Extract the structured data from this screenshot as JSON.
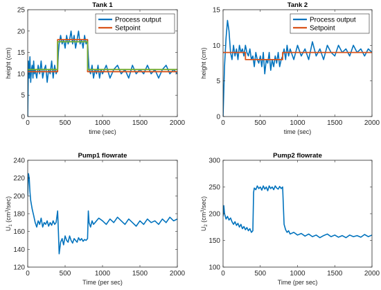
{
  "chart_data": [
    {
      "type": "line",
      "title": "Tank 1",
      "xlabel": "time (sec)",
      "ylabel": "height (cm)",
      "xlim": [
        0,
        2000
      ],
      "ylim": [
        0,
        25
      ],
      "xticks": [
        "0",
        "500",
        "1000",
        "1500",
        "2000"
      ],
      "yticks": [
        "0",
        "5",
        "10",
        "15",
        "20",
        "25"
      ],
      "legend_placement": "top-right",
      "series": [
        {
          "name": "Process output",
          "color": "#0072BD",
          "x": [
            0,
            10,
            20,
            30,
            40,
            50,
            60,
            70,
            80,
            90,
            100,
            120,
            140,
            160,
            180,
            200,
            220,
            240,
            260,
            280,
            300,
            320,
            340,
            360,
            380,
            400,
            410,
            420,
            440,
            460,
            480,
            500,
            520,
            540,
            560,
            580,
            600,
            620,
            640,
            660,
            680,
            700,
            720,
            740,
            760,
            780,
            800,
            810,
            820,
            840,
            860,
            880,
            900,
            920,
            940,
            960,
            980,
            1000,
            1050,
            1100,
            1150,
            1200,
            1250,
            1300,
            1350,
            1400,
            1450,
            1500,
            1550,
            1600,
            1650,
            1700,
            1750,
            1800,
            1850,
            1900,
            1950,
            2000
          ],
          "y": [
            0,
            13,
            9,
            14,
            8,
            11,
            12,
            9,
            13,
            10,
            11,
            9,
            12,
            10,
            13,
            9,
            11,
            12,
            8,
            11,
            10,
            13,
            9,
            12,
            10,
            11,
            15,
            17,
            19,
            17,
            18,
            16,
            19,
            17,
            18,
            20,
            17,
            19,
            16,
            18,
            20,
            17,
            18,
            16,
            19,
            17,
            18,
            14,
            11,
            10,
            12,
            9,
            11,
            10,
            12,
            9,
            11,
            10,
            12,
            9,
            11,
            12,
            10,
            11,
            9,
            12,
            10,
            11,
            10,
            12,
            10,
            11,
            9,
            11,
            12,
            10,
            11,
            10
          ]
        },
        {
          "name": "Setpoint",
          "color": "#D95319",
          "x": [
            0,
            400,
            400,
            800,
            800,
            2000
          ],
          "y": [
            10.5,
            10.5,
            18,
            18,
            10.5,
            10.5
          ]
        },
        {
          "color": "#77AC30",
          "x": [
            0,
            400,
            400,
            800,
            800,
            2000
          ],
          "y": [
            11,
            11,
            17.5,
            17.5,
            11,
            11
          ]
        }
      ]
    },
    {
      "type": "line",
      "title": "Tank 2",
      "xlabel": "time (sec)",
      "ylabel": "height (cm)",
      "xlim": [
        0,
        2000
      ],
      "ylim": [
        0,
        15
      ],
      "xticks": [
        "0",
        "500",
        "1000",
        "1500",
        "2000"
      ],
      "yticks": [
        "0",
        "5",
        "10",
        "15"
      ],
      "legend_placement": "top-right",
      "series": [
        {
          "name": "Process output",
          "color": "#0072BD",
          "x": [
            0,
            20,
            40,
            60,
            80,
            100,
            120,
            140,
            160,
            180,
            200,
            220,
            240,
            260,
            280,
            300,
            320,
            340,
            360,
            380,
            400,
            420,
            440,
            460,
            480,
            500,
            520,
            540,
            560,
            580,
            600,
            620,
            640,
            660,
            680,
            700,
            720,
            740,
            760,
            780,
            800,
            820,
            840,
            860,
            880,
            900,
            950,
            1000,
            1050,
            1100,
            1150,
            1200,
            1250,
            1300,
            1350,
            1400,
            1450,
            1500,
            1550,
            1600,
            1650,
            1700,
            1750,
            1800,
            1850,
            1900,
            1950,
            2000
          ],
          "y": [
            0,
            7,
            11,
            13.5,
            12,
            9,
            8,
            10,
            8.5,
            9.5,
            8,
            10,
            9,
            9.5,
            8.5,
            10,
            9,
            8.5,
            9.5,
            8,
            8.5,
            7,
            9,
            8,
            7.5,
            8.5,
            7,
            9,
            6,
            8,
            7.5,
            9,
            6.5,
            8,
            7,
            8.5,
            7.5,
            9,
            7,
            8,
            8.5,
            9.5,
            8,
            10,
            8.5,
            9.5,
            8,
            10,
            8.5,
            9.5,
            8,
            10.5,
            8.5,
            9.5,
            8,
            10,
            9,
            8.5,
            10,
            9,
            9.5,
            8.5,
            10,
            9,
            9.5,
            8.5,
            9.5,
            9
          ]
        },
        {
          "name": "Setpoint",
          "color": "#D95319",
          "x": [
            0,
            60,
            300,
            300,
            800,
            800,
            2000
          ],
          "y": [
            9,
            9,
            9,
            8,
            8,
            9,
            9
          ]
        }
      ]
    },
    {
      "type": "line",
      "title": "Pump1 flowrate",
      "xlabel": "Time (per sec)",
      "ylabel_main": "U",
      "ylabel_sub": "1",
      "ylabel_unit": " (cm",
      "ylabel_sup": "3",
      "ylabel_tail": "/sec)",
      "xlim": [
        0,
        2000
      ],
      "ylim": [
        120,
        240
      ],
      "xticks": [
        "0",
        "500",
        "1000",
        "1500",
        "2000"
      ],
      "yticks": [
        "120",
        "140",
        "160",
        "180",
        "200",
        "220",
        "240"
      ],
      "series": [
        {
          "color": "#0072BD",
          "x": [
            0,
            10,
            20,
            30,
            40,
            50,
            60,
            80,
            100,
            120,
            140,
            160,
            180,
            200,
            220,
            240,
            260,
            280,
            300,
            320,
            340,
            360,
            380,
            400,
            410,
            420,
            440,
            460,
            480,
            500,
            520,
            540,
            560,
            580,
            600,
            620,
            640,
            660,
            680,
            700,
            720,
            740,
            760,
            780,
            800,
            810,
            820,
            840,
            860,
            880,
            900,
            950,
            1000,
            1050,
            1100,
            1150,
            1200,
            1250,
            1300,
            1350,
            1400,
            1450,
            1500,
            1550,
            1600,
            1650,
            1700,
            1750,
            1800,
            1850,
            1900,
            1950,
            2000
          ],
          "y": [
            200,
            225,
            220,
            205,
            195,
            190,
            185,
            178,
            170,
            165,
            172,
            168,
            175,
            165,
            170,
            168,
            172,
            166,
            170,
            167,
            172,
            168,
            170,
            183,
            160,
            135,
            148,
            152,
            145,
            155,
            150,
            148,
            155,
            150,
            147,
            152,
            150,
            148,
            153,
            150,
            152,
            149,
            151,
            150,
            152,
            183,
            170,
            165,
            172,
            168,
            170,
            175,
            172,
            168,
            174,
            170,
            176,
            172,
            168,
            174,
            170,
            166,
            172,
            168,
            174,
            170,
            172,
            168,
            174,
            170,
            176,
            172,
            174
          ]
        }
      ]
    },
    {
      "type": "line",
      "title": "Pump2 flowrate",
      "xlabel": "Time (per sec)",
      "ylabel_main": "U",
      "ylabel_sub": "2",
      "ylabel_unit": " (cm",
      "ylabel_sup": "3",
      "ylabel_tail": "/sec)",
      "xlim": [
        0,
        2000
      ],
      "ylim": [
        100,
        300
      ],
      "xticks": [
        "0",
        "500",
        "1000",
        "1500",
        "2000"
      ],
      "yticks": [
        "100",
        "150",
        "200",
        "250",
        "300"
      ],
      "series": [
        {
          "color": "#0072BD",
          "x": [
            0,
            10,
            20,
            40,
            60,
            80,
            100,
            120,
            140,
            160,
            180,
            200,
            220,
            240,
            260,
            280,
            300,
            320,
            340,
            360,
            380,
            400,
            410,
            420,
            440,
            460,
            480,
            500,
            520,
            540,
            560,
            580,
            600,
            620,
            640,
            660,
            680,
            700,
            720,
            740,
            760,
            780,
            800,
            820,
            840,
            860,
            880,
            900,
            950,
            1000,
            1050,
            1100,
            1150,
            1200,
            1250,
            1300,
            1350,
            1400,
            1450,
            1500,
            1550,
            1600,
            1650,
            1700,
            1750,
            1800,
            1850,
            1900,
            1950,
            2000
          ],
          "y": [
            195,
            215,
            200,
            190,
            195,
            188,
            192,
            185,
            180,
            185,
            178,
            182,
            175,
            180,
            172,
            176,
            170,
            174,
            168,
            172,
            165,
            168,
            240,
            248,
            245,
            252,
            247,
            250,
            244,
            252,
            246,
            250,
            243,
            252,
            247,
            250,
            245,
            252,
            248,
            246,
            251,
            247,
            250,
            180,
            170,
            165,
            168,
            162,
            165,
            160,
            163,
            158,
            162,
            157,
            160,
            155,
            159,
            162,
            157,
            160,
            156,
            159,
            155,
            160,
            157,
            159,
            156,
            161,
            157,
            160
          ]
        }
      ]
    }
  ]
}
